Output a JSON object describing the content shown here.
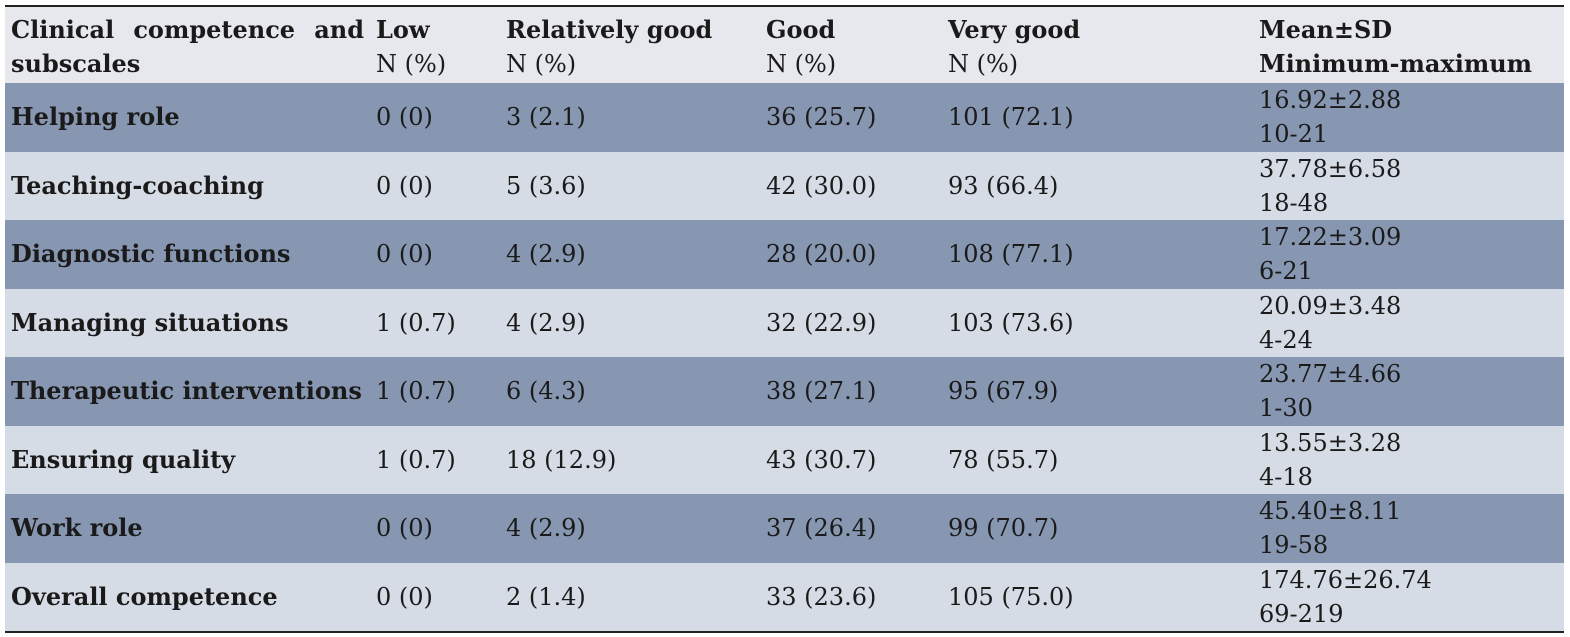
{
  "table": {
    "headers": [
      {
        "title": "Clinical competence and subscales",
        "sub": ""
      },
      {
        "title": "Low",
        "sub": "N (%)"
      },
      {
        "title": "Relatively good",
        "sub": "N (%)"
      },
      {
        "title": "Good",
        "sub": "N (%)"
      },
      {
        "title": "Very good",
        "sub": "N (%)"
      },
      {
        "title": "Mean±SD",
        "sub": "Minimum-maximum"
      }
    ],
    "rows": [
      {
        "label": "Helping role",
        "low": "0 (0)",
        "relatively_good": "3 (2.1)",
        "good": "36 (25.7)",
        "very_good": "101 (72.1)",
        "mean_sd": "16.92±2.88",
        "range": "10-21"
      },
      {
        "label": "Teaching-coaching",
        "low": "0 (0)",
        "relatively_good": "5 (3.6)",
        "good": "42 (30.0)",
        "very_good": "93 (66.4)",
        "mean_sd": "37.78±6.58",
        "range": "18-48"
      },
      {
        "label": "Diagnostic functions",
        "low": "0 (0)",
        "relatively_good": "4 (2.9)",
        "good": "28 (20.0)",
        "very_good": "108 (77.1)",
        "mean_sd": "17.22±3.09",
        "range": "6-21"
      },
      {
        "label": "Managing situations",
        "low": "1 (0.7)",
        "relatively_good": "4 (2.9)",
        "good": "32 (22.9)",
        "very_good": "103 (73.6)",
        "mean_sd": "20.09±3.48",
        "range": "4-24"
      },
      {
        "label": "Therapeutic interventions",
        "low": "1 (0.7)",
        "relatively_good": "6 (4.3)",
        "good": "38 (27.1)",
        "very_good": "95 (67.9)",
        "mean_sd": "23.77±4.66",
        "range": "1-30"
      },
      {
        "label": "Ensuring quality",
        "low": "1 (0.7)",
        "relatively_good": "18 (12.9)",
        "good": "43 (30.7)",
        "very_good": "78 (55.7)",
        "mean_sd": "13.55±3.28",
        "range": "4-18"
      },
      {
        "label": "Work role",
        "low": "0 (0)",
        "relatively_good": "4 (2.9)",
        "good": "37 (26.4)",
        "very_good": "99 (70.7)",
        "mean_sd": "45.40±8.11",
        "range": "19-58"
      },
      {
        "label": "Overall competence",
        "low": "0 (0)",
        "relatively_good": "2 (1.4)",
        "good": "33 (23.6)",
        "very_good": "105 (75.0)",
        "mean_sd": "174.76±26.74",
        "range": "69-219"
      }
    ]
  },
  "colors": {
    "header_bg": "#e6e8ee",
    "row_dark": "#8797b1",
    "row_light": "#d6dce6"
  }
}
